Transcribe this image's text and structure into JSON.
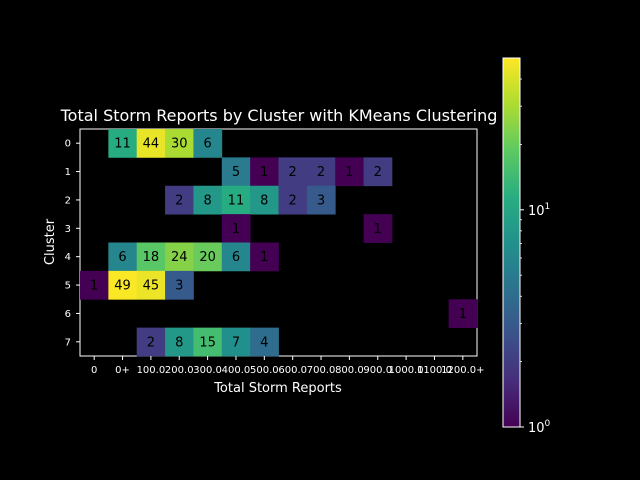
{
  "chart_data": {
    "type": "heatmap",
    "title": "Total Storm Reports by Cluster with KMeans Clustering",
    "xlabel": "Total Storm Reports",
    "ylabel": "Cluster",
    "x_tick_labels": [
      "0",
      "0+",
      "100.0",
      "200.0",
      "300.0",
      "400.0",
      "500.0",
      "600.0",
      "700.0",
      "800.0",
      "900.0",
      "1000.0",
      "1100.0",
      "1200.0+"
    ],
    "y_tick_labels": [
      "0",
      "1",
      "2",
      "3",
      "4",
      "5",
      "6",
      "7"
    ],
    "color_scale": "log",
    "colormap": "viridis",
    "colorbar_range": [
      1,
      50
    ],
    "colorbar_ticks": [
      {
        "value": 1,
        "base": "10",
        "exp": "0"
      },
      {
        "value": 10,
        "base": "10",
        "exp": "1"
      }
    ],
    "cells": [
      {
        "row": 0,
        "col": 1,
        "value": 11
      },
      {
        "row": 0,
        "col": 2,
        "value": 44
      },
      {
        "row": 0,
        "col": 3,
        "value": 30
      },
      {
        "row": 0,
        "col": 4,
        "value": 6
      },
      {
        "row": 1,
        "col": 5,
        "value": 5
      },
      {
        "row": 1,
        "col": 6,
        "value": 1
      },
      {
        "row": 1,
        "col": 7,
        "value": 2
      },
      {
        "row": 1,
        "col": 8,
        "value": 2
      },
      {
        "row": 1,
        "col": 9,
        "value": 1
      },
      {
        "row": 1,
        "col": 10,
        "value": 2
      },
      {
        "row": 2,
        "col": 3,
        "value": 2
      },
      {
        "row": 2,
        "col": 4,
        "value": 8
      },
      {
        "row": 2,
        "col": 5,
        "value": 11
      },
      {
        "row": 2,
        "col": 6,
        "value": 8
      },
      {
        "row": 2,
        "col": 7,
        "value": 2
      },
      {
        "row": 2,
        "col": 8,
        "value": 3
      },
      {
        "row": 3,
        "col": 5,
        "value": 1
      },
      {
        "row": 3,
        "col": 10,
        "value": 1
      },
      {
        "row": 4,
        "col": 1,
        "value": 6
      },
      {
        "row": 4,
        "col": 2,
        "value": 18
      },
      {
        "row": 4,
        "col": 3,
        "value": 24
      },
      {
        "row": 4,
        "col": 4,
        "value": 20
      },
      {
        "row": 4,
        "col": 5,
        "value": 6
      },
      {
        "row": 4,
        "col": 6,
        "value": 1
      },
      {
        "row": 5,
        "col": 0,
        "value": 1
      },
      {
        "row": 5,
        "col": 1,
        "value": 49
      },
      {
        "row": 5,
        "col": 2,
        "value": 45
      },
      {
        "row": 5,
        "col": 3,
        "value": 3
      },
      {
        "row": 6,
        "col": 13,
        "value": 1
      },
      {
        "row": 7,
        "col": 2,
        "value": 2
      },
      {
        "row": 7,
        "col": 3,
        "value": 8
      },
      {
        "row": 7,
        "col": 4,
        "value": 15
      },
      {
        "row": 7,
        "col": 5,
        "value": 7
      },
      {
        "row": 7,
        "col": 6,
        "value": 4
      }
    ],
    "grid": false
  }
}
